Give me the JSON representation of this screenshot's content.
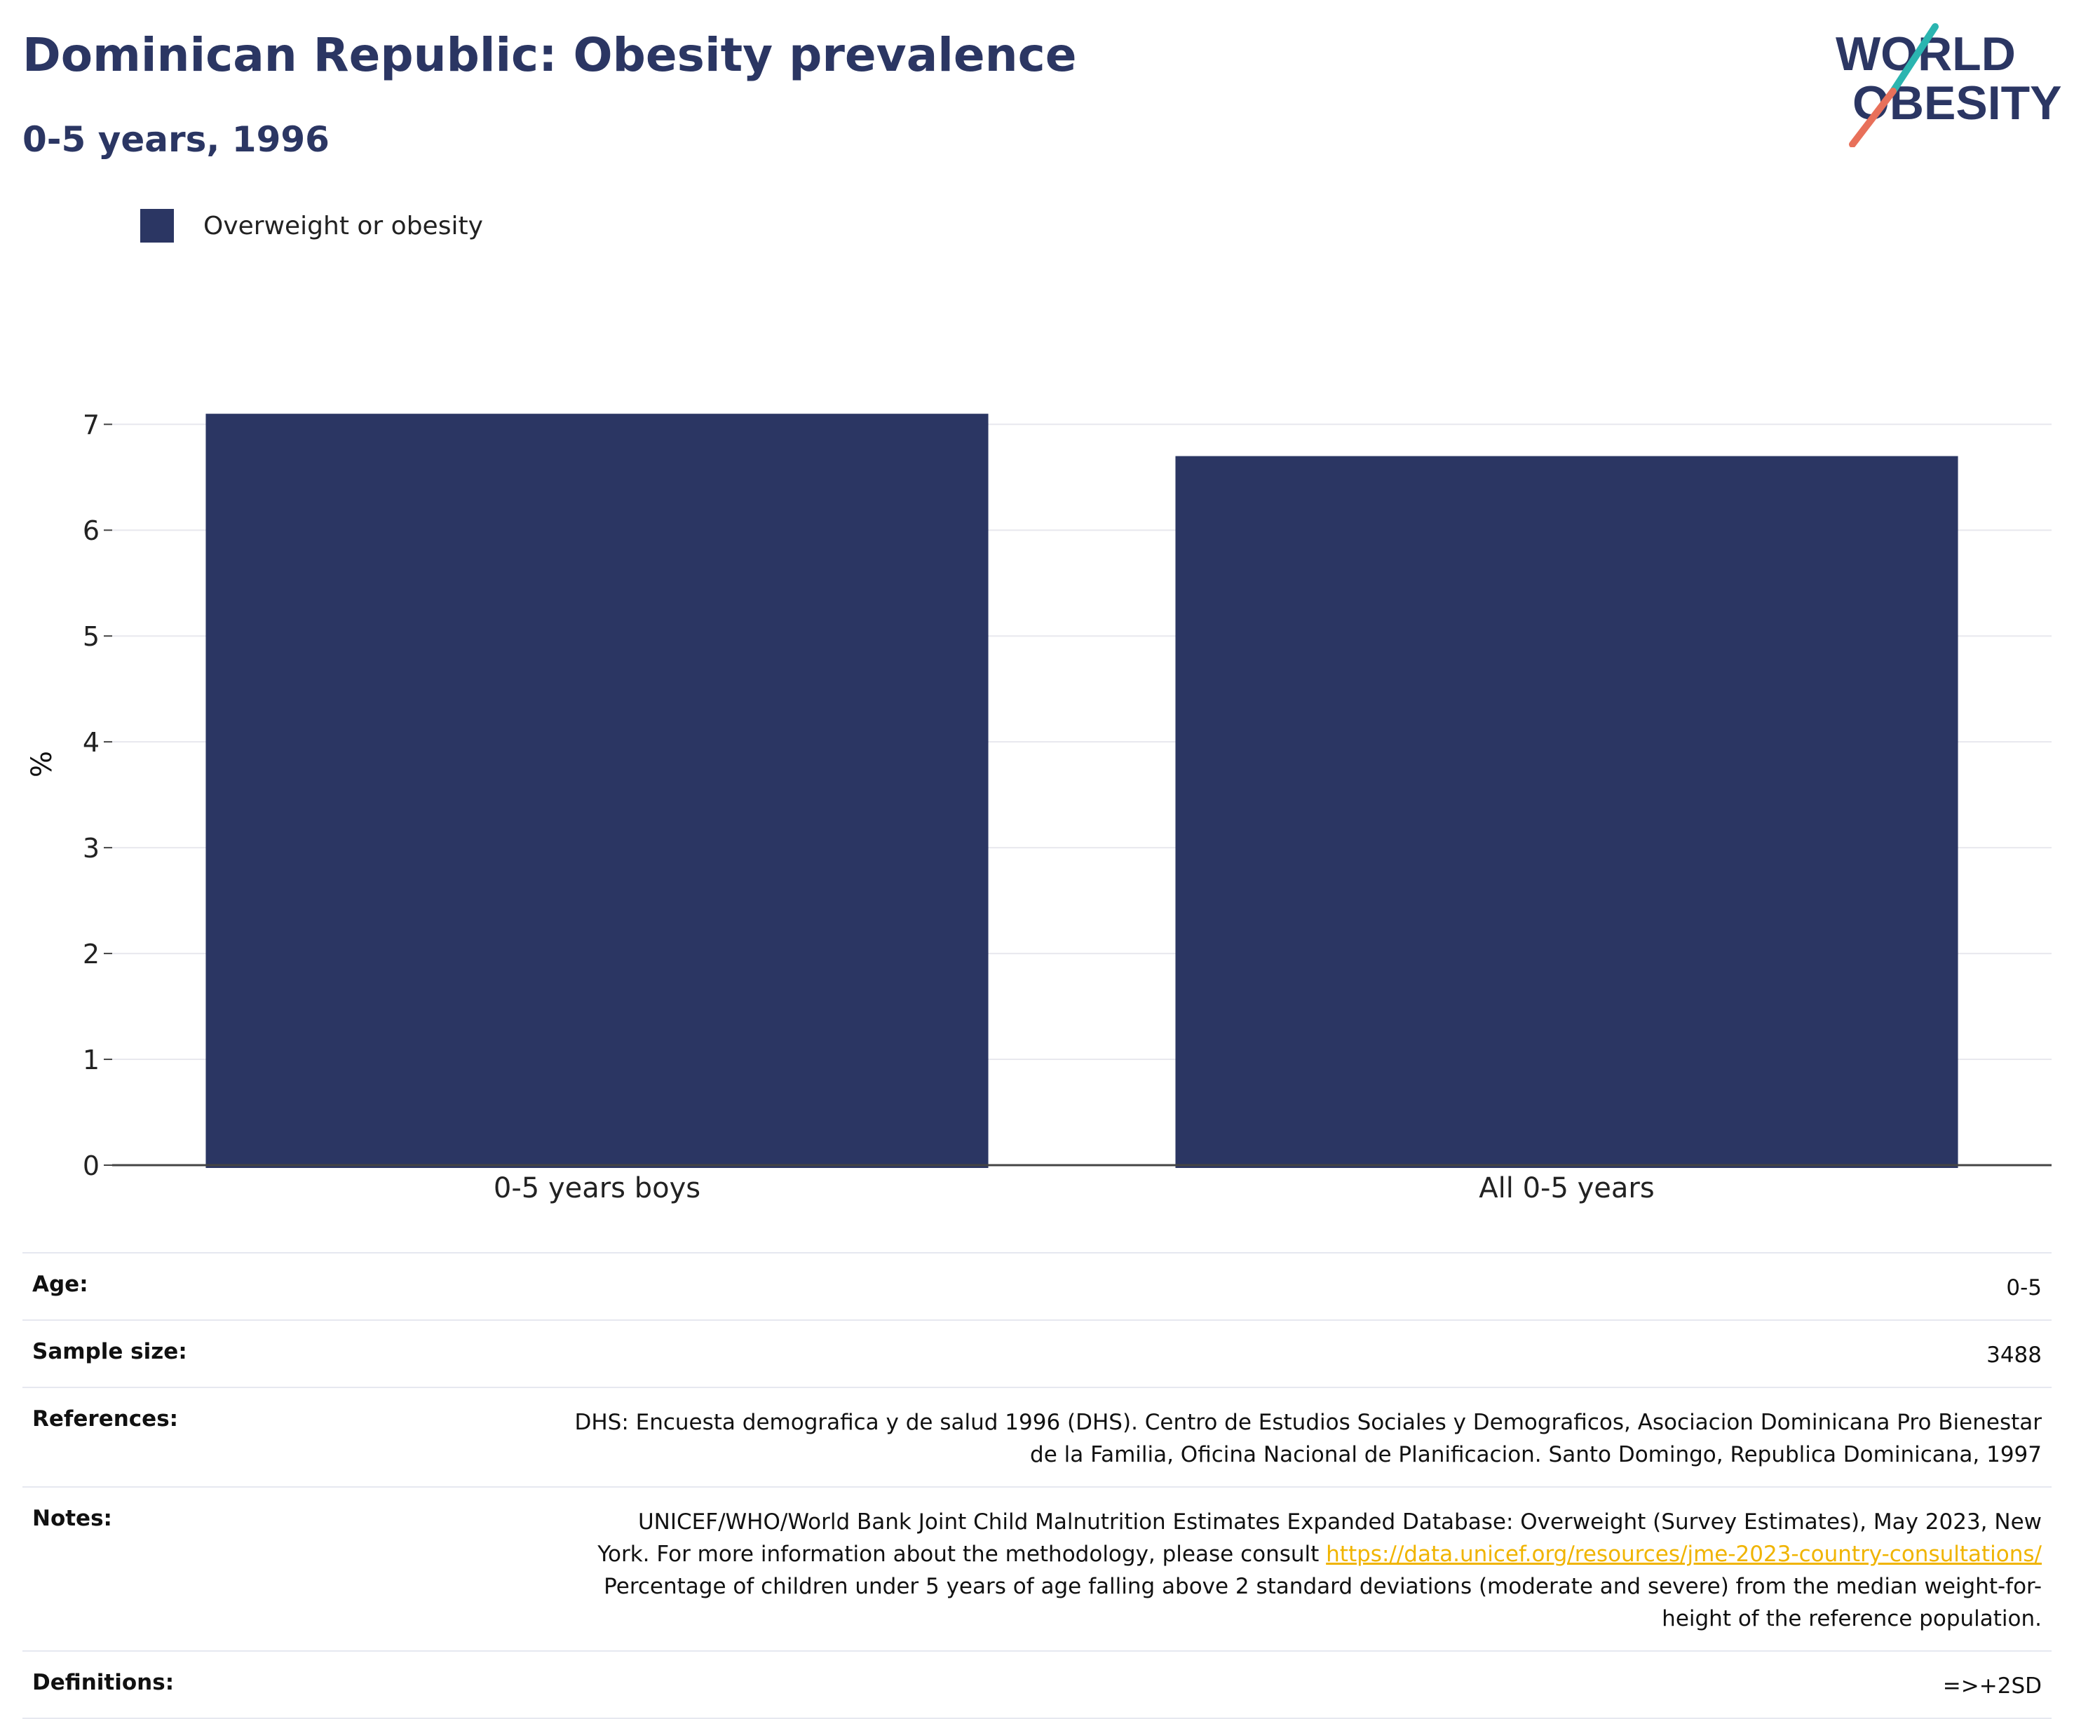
{
  "header": {
    "title": "Dominican Republic: Obesity prevalence",
    "subtitle": "0-5 years, 1996"
  },
  "logo": {
    "line1": "WORLD",
    "line2": "OBESITY",
    "text_color": "#2b3663",
    "slash_teal": "#2bb5b0",
    "slash_coral": "#e8705a"
  },
  "legend": {
    "items": [
      {
        "label": "Overweight or obesity",
        "color": "#2b3663"
      }
    ]
  },
  "chart_data": {
    "type": "bar",
    "categories": [
      "0-5 years boys",
      "All 0-5 years"
    ],
    "series": [
      {
        "name": "Overweight or obesity",
        "values": [
          7.1,
          6.7
        ],
        "color": "#2b3663"
      }
    ],
    "title": "Dominican Republic: Obesity prevalence",
    "subtitle": "0-5 years, 1996",
    "xlabel": "",
    "ylabel": "%",
    "ylim": [
      0,
      7.3
    ],
    "yticks": [
      0,
      1,
      2,
      3,
      4,
      5,
      6,
      7
    ],
    "grid": true,
    "legend_position": "top-left"
  },
  "info": {
    "age_label": "Age:",
    "age_value": "0-5",
    "sample_label": "Sample size:",
    "sample_value": "3488",
    "references_label": "References:",
    "references_line1": "DHS: Encuesta demografica y de salud 1996 (DHS). Centro de Estudios Sociales y Demograficos, Asociacion Dominicana Pro Bienestar",
    "references_line2": "de la Familia, Oficina Nacional de Planificacion. Santo Domingo, Republica Dominicana, 1997",
    "notes_label": "Notes:",
    "notes_line1": "UNICEF/WHO/World Bank Joint Child Malnutrition Estimates Expanded Database: Overweight (Survey Estimates), May 2023, New",
    "notes_line2_prefix": "York. For more information about the methodology, please consult ",
    "notes_link": "https://data.unicef.org/resources/jme-2023-country-consultations/",
    "notes_line3": "Percentage of children under 5 years of age falling above 2 standard deviations (moderate and severe) from the median weight-for-",
    "notes_line4": "height of the reference population.",
    "definitions_label": "Definitions:",
    "definitions_value": "=>+2SD"
  }
}
